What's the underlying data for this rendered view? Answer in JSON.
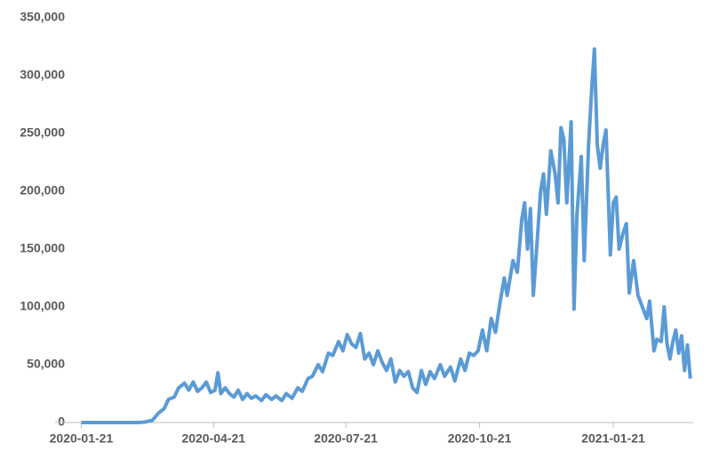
{
  "chart_data": {
    "type": "line",
    "x": [
      "2020-01-21",
      "2020-02-15",
      "2020-03-01",
      "2020-03-05",
      "2020-03-10",
      "2020-03-14",
      "2020-03-18",
      "2020-03-21",
      "2020-03-25",
      "2020-03-28",
      "2020-04-01",
      "2020-04-04",
      "2020-04-07",
      "2020-04-10",
      "2020-04-13",
      "2020-04-16",
      "2020-04-19",
      "2020-04-22",
      "2020-04-24",
      "2020-04-26",
      "2020-04-29",
      "2020-05-02",
      "2020-05-05",
      "2020-05-08",
      "2020-05-11",
      "2020-05-14",
      "2020-05-17",
      "2020-05-20",
      "2020-05-24",
      "2020-05-27",
      "2020-05-31",
      "2020-06-03",
      "2020-06-07",
      "2020-06-10",
      "2020-06-14",
      "2020-06-18",
      "2020-06-21",
      "2020-06-25",
      "2020-06-28",
      "2020-07-02",
      "2020-07-05",
      "2020-07-09",
      "2020-07-12",
      "2020-07-16",
      "2020-07-19",
      "2020-07-22",
      "2020-07-25",
      "2020-07-28",
      "2020-07-31",
      "2020-08-03",
      "2020-08-06",
      "2020-08-09",
      "2020-08-12",
      "2020-08-15",
      "2020-08-18",
      "2020-08-21",
      "2020-08-24",
      "2020-08-27",
      "2020-08-30",
      "2020-09-02",
      "2020-09-05",
      "2020-09-08",
      "2020-09-11",
      "2020-09-14",
      "2020-09-17",
      "2020-09-20",
      "2020-09-24",
      "2020-09-27",
      "2020-10-01",
      "2020-10-04",
      "2020-10-08",
      "2020-10-11",
      "2020-10-14",
      "2020-10-17",
      "2020-10-20",
      "2020-10-23",
      "2020-10-26",
      "2020-10-29",
      "2020-11-01",
      "2020-11-04",
      "2020-11-07",
      "2020-11-09",
      "2020-11-13",
      "2020-11-16",
      "2020-11-19",
      "2020-11-21",
      "2020-11-23",
      "2020-11-25",
      "2020-11-27",
      "2020-11-29",
      "2020-12-02",
      "2020-12-04",
      "2020-12-06",
      "2020-12-09",
      "2020-12-12",
      "2020-12-14",
      "2020-12-16",
      "2020-12-18",
      "2020-12-20",
      "2020-12-23",
      "2020-12-25",
      "2020-12-27",
      "2020-12-30",
      "2021-01-01",
      "2021-01-04",
      "2021-01-06",
      "2021-01-08",
      "2021-01-10",
      "2021-01-12",
      "2021-01-14",
      "2021-01-16",
      "2021-01-19",
      "2021-01-21",
      "2021-01-23",
      "2021-01-25",
      "2021-01-28",
      "2021-01-30",
      "2021-02-01",
      "2021-02-04",
      "2021-02-07",
      "2021-02-10",
      "2021-02-13",
      "2021-02-15",
      "2021-02-18",
      "2021-02-20",
      "2021-02-23",
      "2021-02-25",
      "2021-02-27",
      "2021-03-01",
      "2021-03-03",
      "2021-03-05",
      "2021-03-07",
      "2021-03-09",
      "2021-03-11",
      "2021-03-13",
      "2021-03-15"
    ],
    "values": [
      0,
      0,
      0,
      500,
      2000,
      8000,
      12000,
      20000,
      22000,
      30000,
      34000,
      28000,
      35000,
      27000,
      30000,
      35000,
      26000,
      28000,
      43000,
      25000,
      30000,
      25000,
      22000,
      28000,
      20000,
      25000,
      21000,
      23000,
      19000,
      24000,
      20000,
      23000,
      19000,
      25000,
      21000,
      30000,
      27000,
      38000,
      40000,
      50000,
      44000,
      60000,
      58000,
      70000,
      62000,
      76000,
      68000,
      65000,
      77000,
      55000,
      60000,
      50000,
      62000,
      52000,
      45000,
      55000,
      35000,
      45000,
      40000,
      44000,
      30000,
      26000,
      45000,
      33000,
      44000,
      38000,
      50000,
      40000,
      48000,
      36000,
      55000,
      45000,
      60000,
      58000,
      62000,
      80000,
      62000,
      90000,
      78000,
      103000,
      125000,
      110000,
      140000,
      130000,
      175000,
      190000,
      150000,
      185000,
      110000,
      145000,
      200000,
      215000,
      180000,
      235000,
      215000,
      190000,
      255000,
      245000,
      190000,
      260000,
      98000,
      180000,
      230000,
      140000,
      240000,
      285000,
      323000,
      240000,
      220000,
      240000,
      253000,
      145000,
      190000,
      195000,
      150000,
      165000,
      172000,
      112000,
      140000,
      110000,
      100000,
      90000,
      105000,
      62000,
      72000,
      70000,
      100000,
      68000,
      55000,
      70000,
      80000,
      60000,
      75000,
      45000,
      67000,
      38000
    ],
    "color": "#5b9bd5",
    "xlim": [
      "2020-01-03",
      "2021-03-17"
    ],
    "xticks": [
      "2020-01-21",
      "2020-04-21",
      "2020-07-21",
      "2020-10-21",
      "2021-01-21"
    ],
    "ylim": [
      0,
      350000
    ],
    "yticks": [
      0,
      {
        "value": 50000,
        "label": "50,000"
      },
      {
        "value": 100000,
        "label": "100,000"
      },
      {
        "value": 150000,
        "label": "150,000"
      },
      {
        "value": 200000,
        "label": "200,000"
      },
      {
        "value": 250000,
        "label": "250,000"
      },
      {
        "value": 300000,
        "label": "300,000"
      },
      {
        "value": 350000,
        "label": "350,000"
      }
    ]
  }
}
